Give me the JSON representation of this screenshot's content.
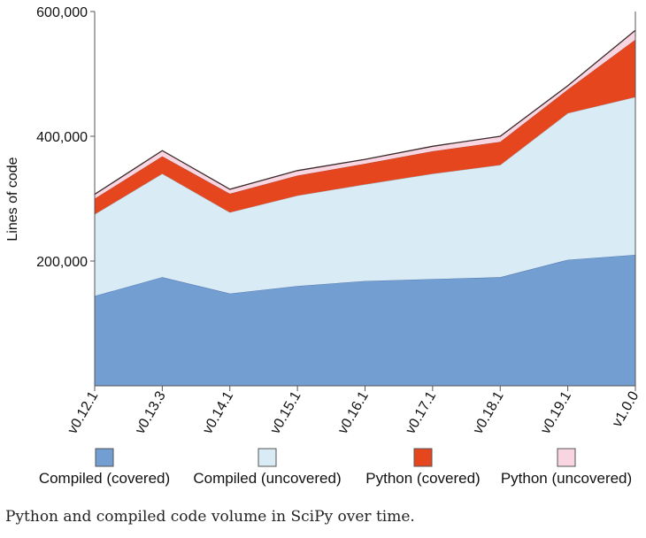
{
  "chart_data": {
    "type": "area",
    "stacked": true,
    "categories": [
      "v0.12.1",
      "v0.13.3",
      "v0.14.1",
      "v0.15.1",
      "v0.16.1",
      "v0.17.1",
      "v0.18.1",
      "v0.19.1",
      "v1.0.0"
    ],
    "series": [
      {
        "name": "Compiled (covered)",
        "color": "#729ed2",
        "values": [
          144000,
          174000,
          148000,
          160000,
          168000,
          171000,
          174000,
          202000,
          210000
        ]
      },
      {
        "name": "Compiled (uncovered)",
        "color": "#d9ebf4",
        "values": [
          131000,
          166000,
          130000,
          145000,
          155000,
          169000,
          180000,
          235000,
          253000
        ]
      },
      {
        "name": "Python (covered)",
        "color": "#e6461e",
        "values": [
          25000,
          28000,
          30000,
          32000,
          33000,
          36000,
          37000,
          38000,
          92000
        ]
      },
      {
        "name": "Python (uncovered)",
        "color": "#f9d5e2",
        "values": [
          7000,
          9000,
          7000,
          8000,
          7000,
          8000,
          9000,
          6000,
          15000
        ]
      }
    ],
    "ylabel": "Lines of code",
    "ylim": [
      0,
      600000
    ],
    "yticks": [
      200000,
      400000,
      600000
    ],
    "ytick_labels": [
      "200,000",
      "400,000",
      "600,000"
    ],
    "grid": false,
    "legend_position": "bottom"
  },
  "caption": "Python and compiled code volume in SciPy over time."
}
